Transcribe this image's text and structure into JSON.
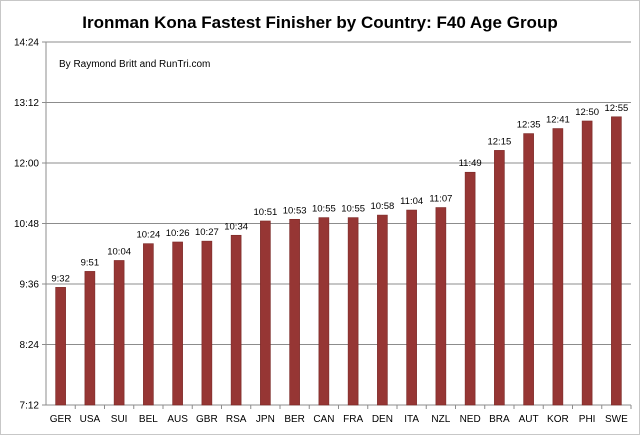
{
  "chart_data": {
    "type": "bar",
    "title": "Ironman Kona Fastest Finisher by Country: F40 Age Group",
    "annotation": "By Raymond Britt and RunTri.com",
    "xlabel": "",
    "ylabel": "",
    "categories": [
      "GER",
      "USA",
      "SUI",
      "BEL",
      "AUS",
      "GBR",
      "RSA",
      "JPN",
      "BER",
      "CAN",
      "FRA",
      "DEN",
      "ITA",
      "NZL",
      "NED",
      "BRA",
      "AUT",
      "KOR",
      "PHI",
      "SWE"
    ],
    "values": [
      "9:32",
      "9:51",
      "10:04",
      "10:24",
      "10:26",
      "10:27",
      "10:34",
      "10:51",
      "10:53",
      "10:55",
      "10:55",
      "10:58",
      "11:04",
      "11:07",
      "11:49",
      "12:15",
      "12:35",
      "12:41",
      "12:50",
      "12:55"
    ],
    "data_labels": [
      "9:32",
      "9:51",
      "10:04",
      "10:24",
      "10:26",
      "10:27",
      "10:34",
      "10:51",
      "10:53",
      "10:55",
      "10:55",
      "10:58",
      "11:04",
      "11:07",
      "11:49",
      "12:15",
      "12:35",
      "12:41",
      "12:50",
      "12:55"
    ],
    "yticks": [
      "7:12",
      "8:24",
      "9:36",
      "10:48",
      "12:00",
      "13:12",
      "14:24"
    ],
    "ylim": [
      "7:12",
      "14:24"
    ],
    "grid": true,
    "legend": "none",
    "colors": {
      "bar_fill": "#963634",
      "bar_stroke": "#7a2725",
      "gridline": "#8c8c8c",
      "axis": "#8c8c8c"
    }
  }
}
